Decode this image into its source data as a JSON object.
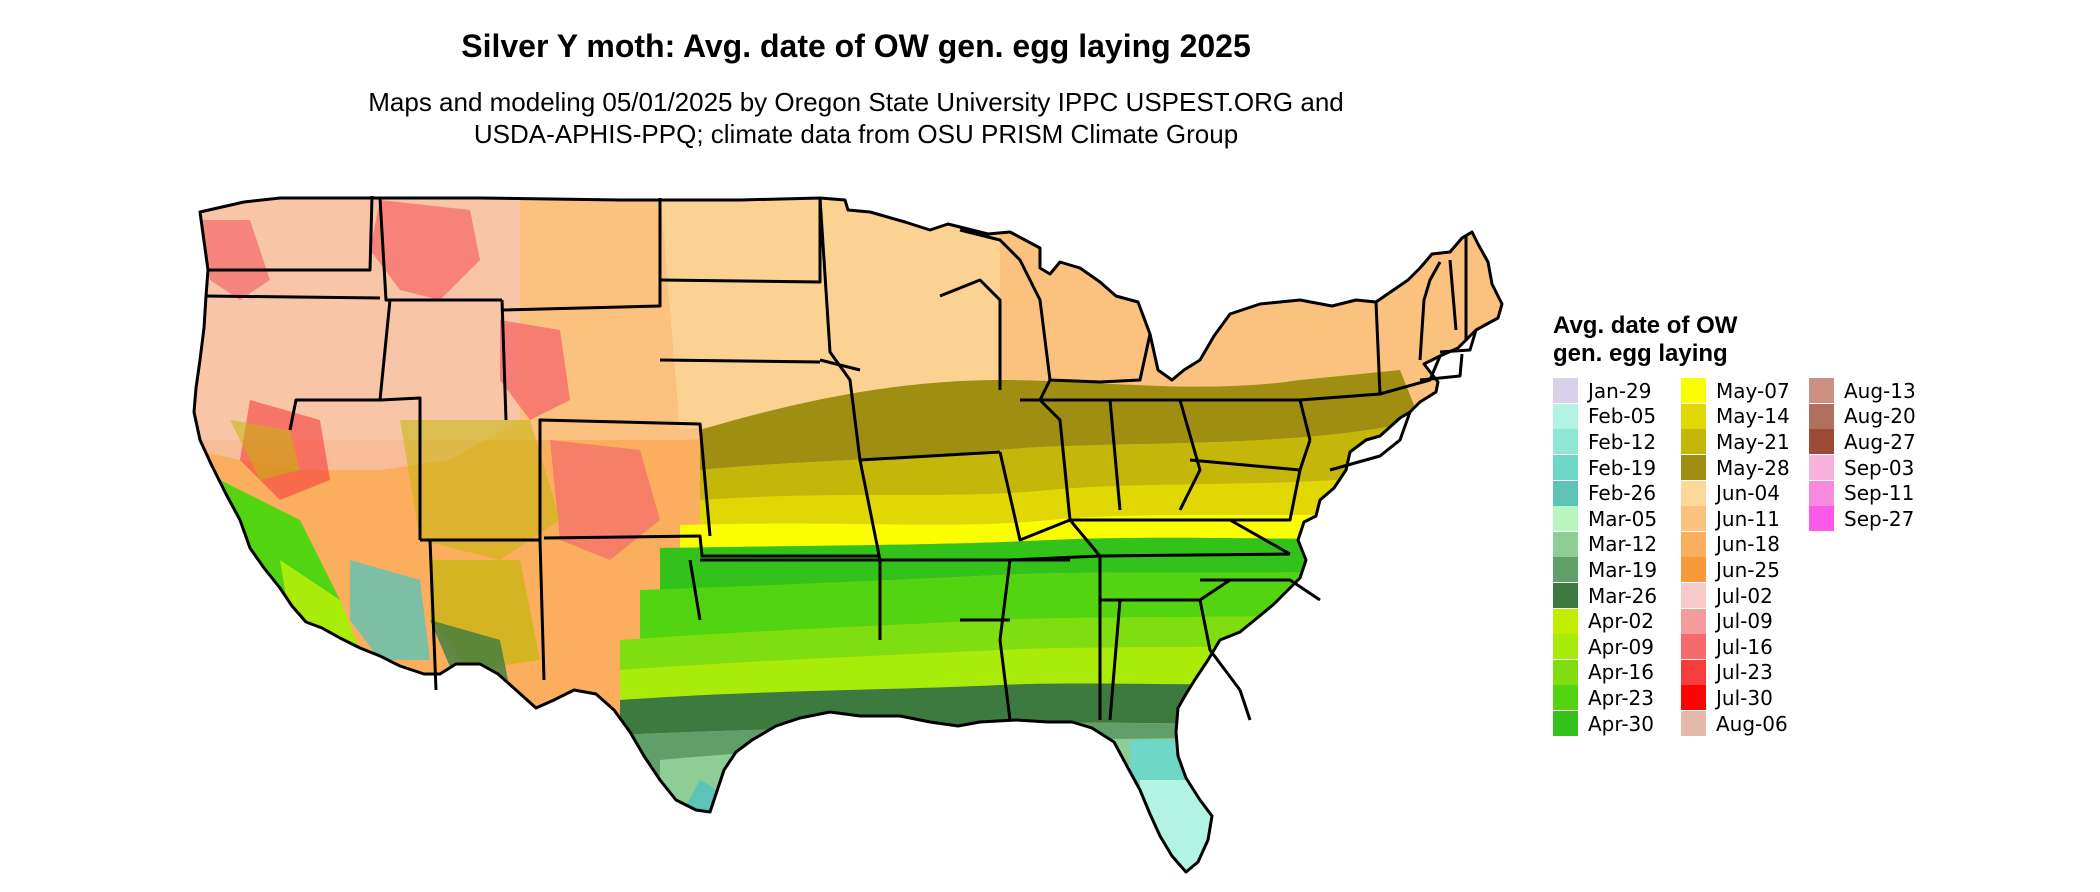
{
  "title": "Silver Y moth: Avg. date of OW gen. egg laying 2025",
  "subtitle_lines": [
    "Maps and modeling 05/01/2025 by Oregon State University IPPC USPEST.ORG and",
    "USDA-APHIS-PPQ; climate data from OSU PRISM Climate Group"
  ],
  "legend": {
    "title_lines": [
      "Avg. date of OW",
      "gen. egg laying"
    ],
    "items": [
      {
        "label": "Jan-29",
        "color": "#d9d1ea"
      },
      {
        "label": "Feb-05",
        "color": "#b3f3e3"
      },
      {
        "label": "Feb-12",
        "color": "#8fe6d2"
      },
      {
        "label": "Feb-19",
        "color": "#6fd7c5"
      },
      {
        "label": "Feb-26",
        "color": "#5cc3b6"
      },
      {
        "label": "Mar-05",
        "color": "#b9f5c1"
      },
      {
        "label": "Mar-12",
        "color": "#8ece96"
      },
      {
        "label": "Mar-19",
        "color": "#609f6a"
      },
      {
        "label": "Mar-26",
        "color": "#3d7a40"
      },
      {
        "label": "Apr-02",
        "color": "#c3ee00"
      },
      {
        "label": "Apr-09",
        "color": "#a9ec0a"
      },
      {
        "label": "Apr-16",
        "color": "#7ede10"
      },
      {
        "label": "Apr-23",
        "color": "#53d411"
      },
      {
        "label": "Apr-30",
        "color": "#33c219"
      },
      {
        "label": "May-07",
        "color": "#fbfe01"
      },
      {
        "label": "May-14",
        "color": "#e1d705"
      },
      {
        "label": "May-21",
        "color": "#c5b60a"
      },
      {
        "label": "May-28",
        "color": "#a08e12"
      },
      {
        "label": "Jun-04",
        "color": "#fcd89b"
      },
      {
        "label": "Jun-11",
        "color": "#fbc17e"
      },
      {
        "label": "Jun-18",
        "color": "#fbae5e"
      },
      {
        "label": "Jun-25",
        "color": "#f99a3a"
      },
      {
        "label": "Jul-02",
        "color": "#f7c9c9"
      },
      {
        "label": "Jul-09",
        "color": "#f59c9c"
      },
      {
        "label": "Jul-16",
        "color": "#f56b6b"
      },
      {
        "label": "Jul-23",
        "color": "#f53d3d"
      },
      {
        "label": "Jul-30",
        "color": "#fb0404"
      },
      {
        "label": "Aug-06",
        "color": "#e6b9ad"
      },
      {
        "label": "Aug-13",
        "color": "#cc9082"
      },
      {
        "label": "Aug-20",
        "color": "#b16f60"
      },
      {
        "label": "Aug-27",
        "color": "#9b4a36"
      },
      {
        "label": "Sep-03",
        "color": "#f7b3dc"
      },
      {
        "label": "Sep-11",
        "color": "#f789df"
      },
      {
        "label": "Sep-27",
        "color": "#fb5ae9"
      }
    ]
  }
}
